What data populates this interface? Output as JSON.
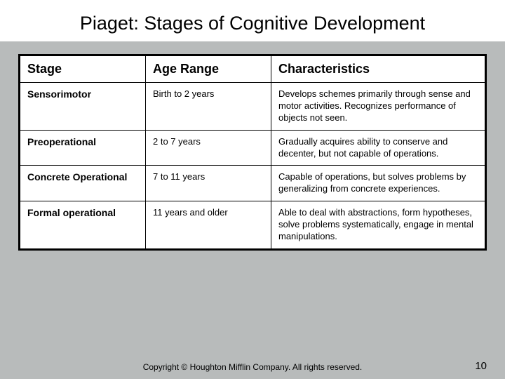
{
  "title": "Piaget: Stages of Cognitive Development",
  "table": {
    "background_color": "#ffffff",
    "border_color": "#000000",
    "columns": [
      {
        "header": "Stage",
        "width_pct": 27
      },
      {
        "header": "Age Range",
        "width_pct": 27
      },
      {
        "header": "Characteristics",
        "width_pct": 46
      }
    ],
    "rows": [
      {
        "stage": "Sensorimotor",
        "age": "Birth to 2 years",
        "characteristics": "Develops schemes primarily through sense and motor activities. Recognizes performance of objects not seen."
      },
      {
        "stage": "Preoperational",
        "age": "2 to 7 years",
        "characteristics": "Gradually acquires ability to conserve and decenter, but not capable of operations."
      },
      {
        "stage": "Concrete Operational",
        "age": "7 to 11 years",
        "characteristics": "Capable of operations, but solves problems by generalizing from concrete experiences."
      },
      {
        "stage": "Formal operational",
        "age": "11 years and older",
        "characteristics": "Able to deal with abstractions, form hypotheses, solve problems systematically, engage in mental manipulations."
      }
    ],
    "header_fontsize": 18,
    "stage_fontsize": 14,
    "cell_fontsize": 13
  },
  "footer": "Copyright © Houghton Mifflin Company. All rights reserved.",
  "page_number": "10",
  "colors": {
    "slide_background": "#b8bbbb",
    "title_background": "#ffffff",
    "text": "#000000"
  },
  "title_fontsize": 27
}
